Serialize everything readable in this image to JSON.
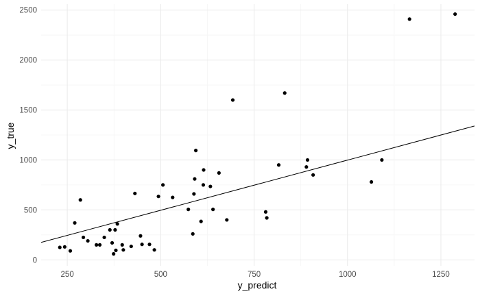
{
  "chart_data": {
    "type": "scatter",
    "title": "",
    "xlabel": "y_predict",
    "ylabel": "y_true",
    "xlim": [
      180,
      1340
    ],
    "ylim": [
      -60,
      2560
    ],
    "x_ticks": [
      250,
      500,
      750,
      1000,
      1250
    ],
    "x_tick_labels": [
      "250",
      "500",
      "750",
      "1000",
      "1250"
    ],
    "y_ticks": [
      0,
      500,
      1000,
      1500,
      2000,
      2500
    ],
    "y_tick_labels": [
      "0",
      "500",
      "1000",
      "1500",
      "2000",
      "2500"
    ],
    "x_minor_ticks": [
      375,
      625,
      875,
      1125
    ],
    "y_minor_ticks": [
      250,
      750,
      1250,
      1750,
      2250
    ],
    "grid": true,
    "points": [
      {
        "x": 230,
        "y": 125
      },
      {
        "x": 243,
        "y": 130
      },
      {
        "x": 258,
        "y": 90
      },
      {
        "x": 270,
        "y": 370
      },
      {
        "x": 285,
        "y": 600
      },
      {
        "x": 293,
        "y": 225
      },
      {
        "x": 305,
        "y": 190
      },
      {
        "x": 328,
        "y": 150
      },
      {
        "x": 337,
        "y": 150
      },
      {
        "x": 349,
        "y": 225
      },
      {
        "x": 364,
        "y": 300
      },
      {
        "x": 370,
        "y": 170
      },
      {
        "x": 374,
        "y": 60
      },
      {
        "x": 378,
        "y": 300
      },
      {
        "x": 380,
        "y": 95
      },
      {
        "x": 384,
        "y": 360
      },
      {
        "x": 397,
        "y": 150
      },
      {
        "x": 400,
        "y": 100
      },
      {
        "x": 421,
        "y": 135
      },
      {
        "x": 431,
        "y": 665
      },
      {
        "x": 446,
        "y": 240
      },
      {
        "x": 450,
        "y": 155
      },
      {
        "x": 470,
        "y": 155
      },
      {
        "x": 483,
        "y": 100
      },
      {
        "x": 494,
        "y": 635
      },
      {
        "x": 506,
        "y": 750
      },
      {
        "x": 532,
        "y": 625
      },
      {
        "x": 574,
        "y": 505
      },
      {
        "x": 586,
        "y": 260
      },
      {
        "x": 589,
        "y": 660
      },
      {
        "x": 591,
        "y": 810
      },
      {
        "x": 594,
        "y": 1095
      },
      {
        "x": 608,
        "y": 385
      },
      {
        "x": 614,
        "y": 750
      },
      {
        "x": 615,
        "y": 900
      },
      {
        "x": 633,
        "y": 735
      },
      {
        "x": 640,
        "y": 505
      },
      {
        "x": 656,
        "y": 870
      },
      {
        "x": 677,
        "y": 400
      },
      {
        "x": 693,
        "y": 1600
      },
      {
        "x": 781,
        "y": 480
      },
      {
        "x": 784,
        "y": 420
      },
      {
        "x": 816,
        "y": 950
      },
      {
        "x": 832,
        "y": 1670
      },
      {
        "x": 890,
        "y": 930
      },
      {
        "x": 893,
        "y": 1000
      },
      {
        "x": 908,
        "y": 850
      },
      {
        "x": 1064,
        "y": 780
      },
      {
        "x": 1092,
        "y": 1000
      },
      {
        "x": 1166,
        "y": 2410
      },
      {
        "x": 1288,
        "y": 2460
      }
    ],
    "fit_line": {
      "x": [
        180,
        1340
      ],
      "y": [
        175,
        1340
      ]
    },
    "colors": {
      "background": "#ffffff",
      "grid_major": "#ebebeb",
      "grid_minor": "#f5f5f5",
      "points": "#000000",
      "line": "#000000"
    }
  }
}
